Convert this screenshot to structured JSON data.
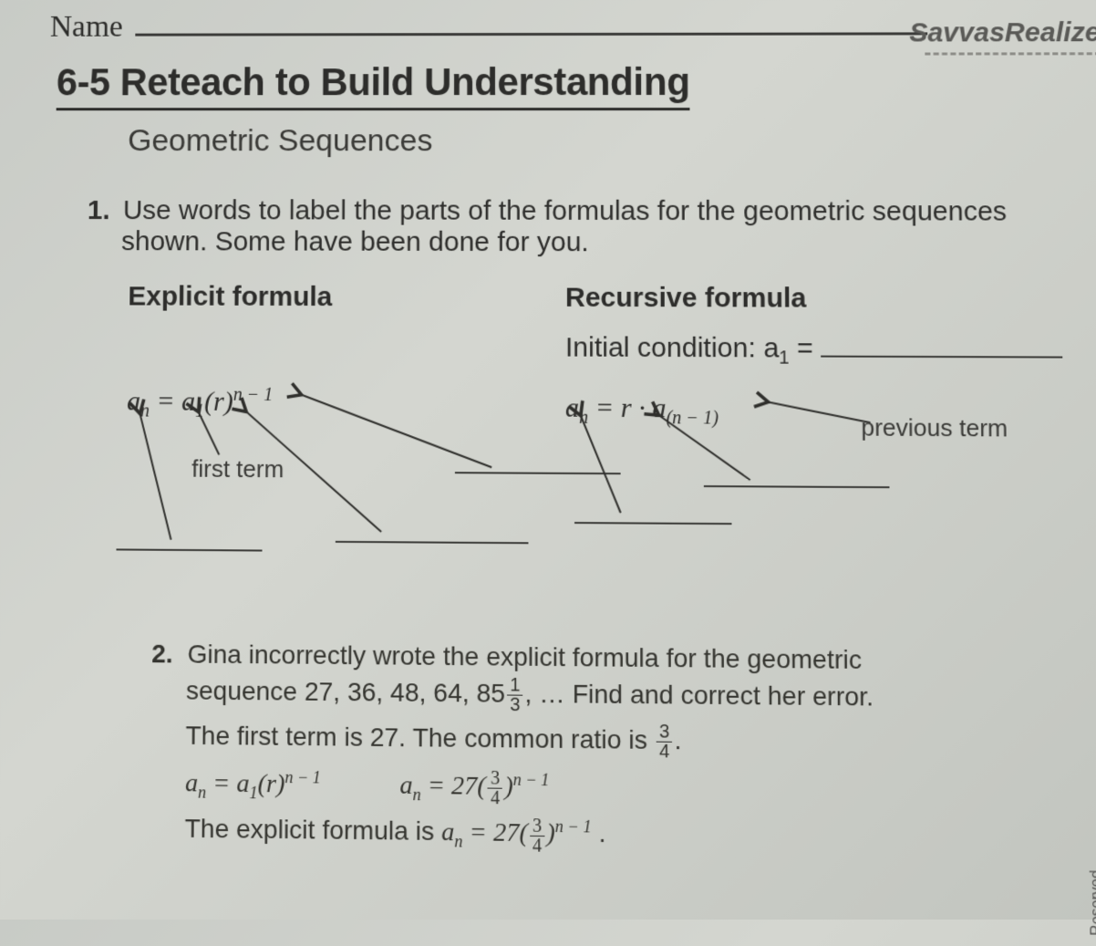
{
  "header": {
    "name_label": "Name",
    "brand": "SavvasRealize",
    "title": "6-5  Reteach to Build Understanding",
    "subtitle": "Geometric Sequences"
  },
  "q1": {
    "number": "1.",
    "text1": "Use words to label the parts of the formulas for the geometric sequences",
    "text2": "shown. Some have been done for you.",
    "explicit_heading": "Explicit formula",
    "recursive_heading": "Recursive formula",
    "initial_label": "Initial condition: a",
    "initial_sub": "1",
    "initial_eq": " = ",
    "explicit_formula_html": "a<sub>n</sub> = a<sub>1</sub>(r)<sup>n − 1</sup>",
    "recursive_formula_html": "a<sub>n</sub> = r · a<sub>(n − 1)</sub>",
    "label_first_term": "first term",
    "label_previous_term": "previous term",
    "arrow_color": "#2f2f2c",
    "blank_color": "#3d3d3a"
  },
  "q2": {
    "number": "2.",
    "line1": "Gina incorrectly wrote the explicit formula for the geometric",
    "line2_a": "sequence 27, 36, 48, 64, 85",
    "line2_frac_top": "1",
    "line2_frac_bot": "3",
    "line2_b": ", … Find and correct her error.",
    "line3_a": "The first term is 27.    The common ratio is ",
    "line3_frac_top": "3",
    "line3_frac_bot": "4",
    "line3_b": ".",
    "line4_left": "a<sub>n</sub> = a<sub>1</sub>(r)<sup>n − 1</sup>",
    "line4_right": "a<sub>n</sub> = 27(<span class='frac'><span class='top'>3</span><span class='bot'>4</span></span>)<sup>n − 1</sup>",
    "line5_a": "The explicit formula is ",
    "line5_b": "a<sub>n</sub> = 27(<span class='frac'><span class='top'>3</span><span class='bot'>4</span></span>)<sup>n − 1</sup>",
    "line5_c": " ."
  },
  "footer": {
    "reserved": "Reserved."
  },
  "colors": {
    "text": "#2d2d2b",
    "bg_from": "#c8cbc6",
    "bg_to": "#c2c5bf"
  }
}
